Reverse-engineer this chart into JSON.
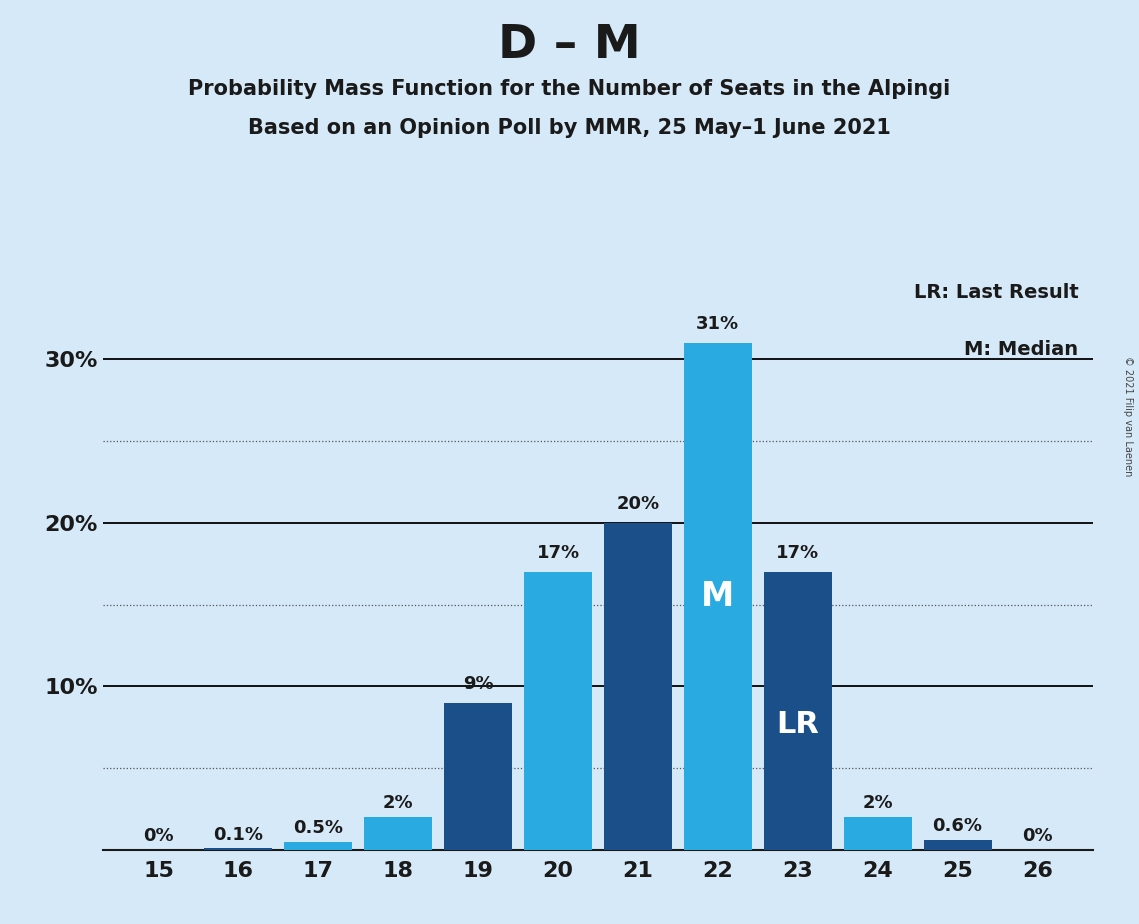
{
  "title_main": "D – M",
  "title_sub1": "Probability Mass Function for the Number of Seats in the Alpingi",
  "title_sub2": "Based on an Opinion Poll by MMR, 25 May–1 June 2021",
  "copyright_text": "© 2021 Filip van Laenen",
  "seats": [
    15,
    16,
    17,
    18,
    19,
    20,
    21,
    22,
    23,
    24,
    25,
    26
  ],
  "probabilities": [
    0.0,
    0.1,
    0.5,
    2.0,
    9.0,
    17.0,
    20.0,
    31.0,
    17.0,
    2.0,
    0.6,
    0.0
  ],
  "labels": [
    "0%",
    "0.1%",
    "0.5%",
    "2%",
    "9%",
    "17%",
    "20%",
    "31%",
    "17%",
    "2%",
    "0.6%",
    "0%"
  ],
  "colors": {
    "light_blue": "#29ABE2",
    "dark_blue": "#1B4F8A",
    "background": "#D6E9F8"
  },
  "bar_colors": [
    "light_blue",
    "dark_blue",
    "light_blue",
    "light_blue",
    "dark_blue",
    "light_blue",
    "dark_blue",
    "light_blue",
    "dark_blue",
    "light_blue",
    "dark_blue",
    "dark_blue"
  ],
  "median_seat": 22,
  "last_result_seat": 23,
  "legend_lr": "LR: Last Result",
  "legend_m": "M: Median",
  "solid_gridlines": [
    10,
    20,
    30
  ],
  "dotted_gridlines": [
    5,
    15,
    25
  ],
  "ylim": [
    0,
    35
  ],
  "ytick_vals": [
    10,
    20,
    30
  ],
  "ytick_labels": [
    "10%",
    "20%",
    "30%"
  ]
}
